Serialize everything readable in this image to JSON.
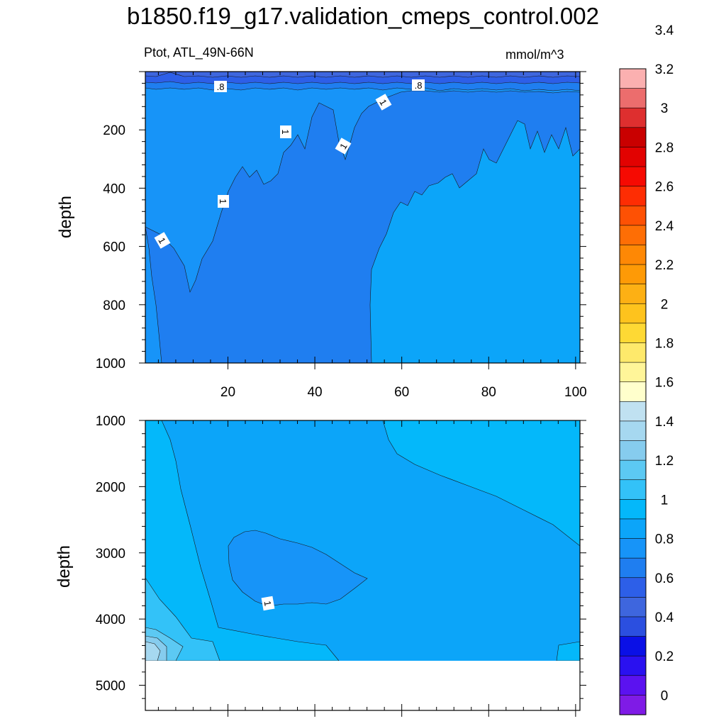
{
  "header": {
    "title": "b1850.f19_g17.validation_cmeps_control.002",
    "variable_region": "Ptot, ATL_49N-66N",
    "units": "mmol/m^3"
  },
  "chart_data": {
    "type": "heatmap",
    "subtype": "filled-contour",
    "panels": [
      {
        "name": "upper",
        "xlim": [
          1,
          101
        ],
        "ylim": [
          1000,
          0
        ],
        "x_ticks": [
          20,
          40,
          60,
          80,
          100
        ],
        "y_ticks": [
          200,
          400,
          600,
          800,
          1000
        ],
        "ylabel": "depth",
        "contour_labels": [
          ".8",
          ".8",
          "1",
          "1",
          "1",
          "1",
          "1"
        ]
      },
      {
        "name": "lower",
        "xlim": [
          1,
          101
        ],
        "ylim": [
          5380,
          1000
        ],
        "y_ticks": [
          1000,
          2000,
          3000,
          4000,
          5000
        ],
        "ylabel": "depth",
        "missing_below_depth": 4630,
        "contour_labels": [
          "1"
        ]
      }
    ],
    "colorbar": {
      "labels": [
        "0",
        "0.2",
        "0.4",
        "0.6",
        "0.8",
        "1",
        "1.2",
        "1.4",
        "1.6",
        "1.8",
        "2",
        "2.2",
        "2.4",
        "2.6",
        "2.8",
        "3",
        "3.2",
        "3.4"
      ],
      "colors": [
        "#7f1be6",
        "#5b12f0",
        "#2a11f0",
        "#0a10e6",
        "#2b4fe0",
        "#3e66de",
        "#2d5fe8",
        "#1f7ef0",
        "#1794f8",
        "#0ca5f9",
        "#04b8fa",
        "#33c2f8",
        "#5cc9f3",
        "#86ccee",
        "#a6d8f0",
        "#c0e1f1",
        "#ffffcc",
        "#fff599",
        "#fee96b",
        "#fed934",
        "#fec31d",
        "#fdb014",
        "#fe9a06",
        "#fe8805",
        "#fe6e05",
        "#fe5104",
        "#fe2d03",
        "#f60a02",
        "#e20201",
        "#c90000",
        "#de2f2f",
        "#ec6d6d",
        "#fbb0b0"
      ]
    }
  }
}
